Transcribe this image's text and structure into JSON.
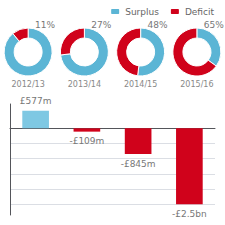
{
  "chart_data": [
    {
      "type": "pie",
      "title": "2012/13",
      "categories": [
        "Surplus",
        "Deficit"
      ],
      "values": [
        89,
        11
      ],
      "value_labels": [
        null,
        "11%"
      ],
      "colors": [
        "#5bb5d5",
        "#d0021b"
      ],
      "legend": "top right"
    },
    {
      "type": "pie",
      "title": "2013/14",
      "categories": [
        "Surplus",
        "Deficit"
      ],
      "values": [
        73,
        27
      ],
      "value_labels": [
        null,
        "27%"
      ],
      "colors": [
        "#5bb5d5",
        "#d0021b"
      ]
    },
    {
      "type": "pie",
      "title": "2014/15",
      "categories": [
        "Surplus",
        "Deficit"
      ],
      "values": [
        52,
        48
      ],
      "value_labels": [
        null,
        "48%"
      ],
      "colors": [
        "#5bb5d5",
        "#d0021b"
      ]
    },
    {
      "type": "pie",
      "title": "2015/16",
      "categories": [
        "Surplus",
        "Deficit"
      ],
      "values": [
        35,
        65
      ],
      "value_labels": [
        null,
        "65%"
      ],
      "colors": [
        "#5bb5d5",
        "#d0021b"
      ]
    },
    {
      "type": "bar",
      "categories": [
        null,
        null,
        null,
        null
      ],
      "values": [
        577,
        -109,
        -845,
        -2500
      ],
      "value_labels": [
        "£577m",
        "-£109m",
        "-£845m",
        "-£2.5bn"
      ],
      "colors": [
        "#7ec8e3",
        "#d0021b",
        "#d0021b",
        "#d0021b"
      ],
      "ylim": [
        -2850,
        800
      ],
      "yticks": [
        -2500,
        -2000,
        -1500,
        -1000,
        -500,
        0
      ],
      "grid": true,
      "tick_labels": false
    }
  ]
}
